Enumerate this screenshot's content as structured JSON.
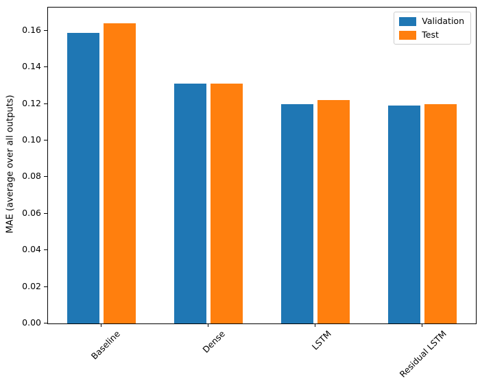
{
  "figure": {
    "background": "#ffffff"
  },
  "chart_data": {
    "type": "bar",
    "title": "",
    "xlabel": "",
    "ylabel": "MAE (average over all outputs)",
    "categories": [
      "Baseline",
      "Dense",
      "LSTM",
      "Residual LSTM"
    ],
    "series": [
      {
        "name": "Validation",
        "color": "#1f77b4",
        "values": [
          0.159,
          0.131,
          0.12,
          0.119
        ]
      },
      {
        "name": "Test",
        "color": "#ff7f0e",
        "values": [
          0.164,
          0.131,
          0.122,
          0.12
        ]
      }
    ],
    "ylim": [
      0,
      0.1727
    ],
    "yticks": [
      {
        "value": 0.0,
        "label": "0.00"
      },
      {
        "value": 0.02,
        "label": "0.02"
      },
      {
        "value": 0.04,
        "label": "0.04"
      },
      {
        "value": 0.06,
        "label": "0.06"
      },
      {
        "value": 0.08,
        "label": "0.08"
      },
      {
        "value": 0.1,
        "label": "0.10"
      },
      {
        "value": 0.12,
        "label": "0.12"
      },
      {
        "value": 0.14,
        "label": "0.14"
      },
      {
        "value": 0.16,
        "label": "0.16"
      },
      {
        "value": 0.17,
        "label": ""
      }
    ],
    "xtick_rotation": 45,
    "grid": false,
    "legend": {
      "position": "upper right",
      "entries": [
        "Validation",
        "Test"
      ]
    }
  }
}
